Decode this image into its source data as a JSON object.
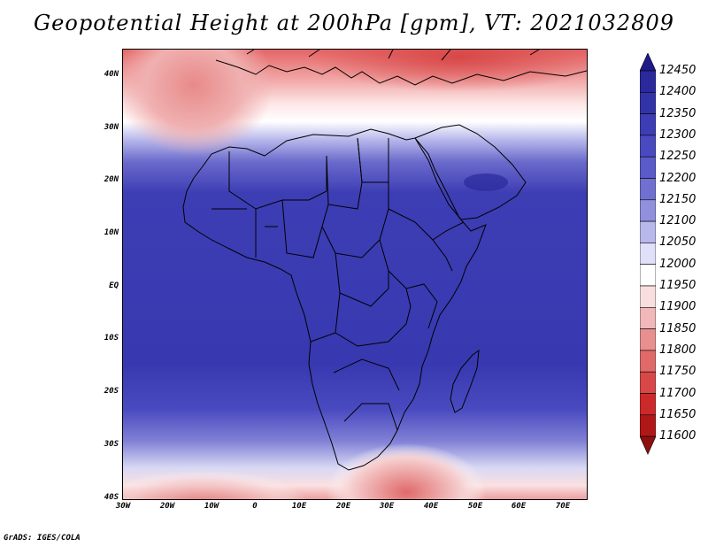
{
  "title": "Geopotential Height at 200hPa [gpm], VT: 2021032809",
  "credit": "GrADS: IGES/COLA",
  "lat_labels": [
    "40N",
    "30N",
    "20N",
    "10N",
    "EQ",
    "10S",
    "20S",
    "30S",
    "40S"
  ],
  "lon_labels": [
    "30W",
    "20W",
    "10W",
    "0",
    "10E",
    "20E",
    "30E",
    "40E",
    "50E",
    "60E",
    "70E"
  ],
  "colorbar": {
    "levels": [
      "12450",
      "12400",
      "12350",
      "12300",
      "12250",
      "12200",
      "12150",
      "12100",
      "12050",
      "12000",
      "11950",
      "11900",
      "11850",
      "11800",
      "11750",
      "11700",
      "11650",
      "11600"
    ],
    "colors": [
      "#1f1a8a",
      "#2a2a9c",
      "#3333a8",
      "#3d3db4",
      "#4a4ac0",
      "#5a5ac8",
      "#7070d0",
      "#9090dc",
      "#b8b8ec",
      "#e0e0f8",
      "#ffffff",
      "#f8dede",
      "#f0b8b8",
      "#e89090",
      "#e06a6a",
      "#d84848",
      "#cc2a2a",
      "#b01818",
      "#8e0f0f"
    ]
  }
}
